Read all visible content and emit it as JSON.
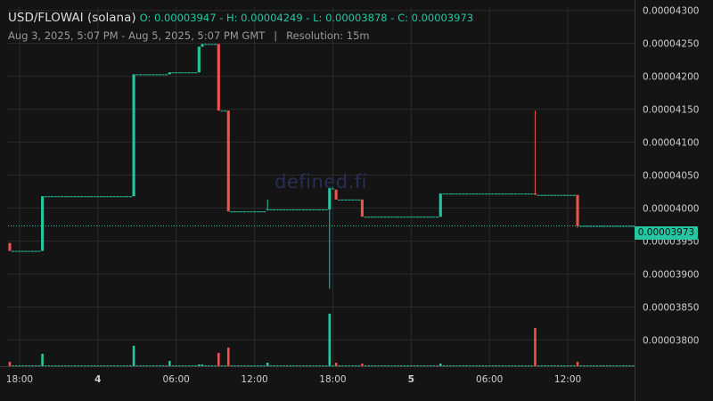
{
  "header": {
    "pair": "USD/FLOWAI (solana)",
    "open": "O: 0.00003947",
    "high": "H: 0.00004249",
    "low": "L: 0.00003878",
    "close": "C: 0.00003973",
    "separator": " - ",
    "range": "Aug 3, 2025, 5:07 PM - Aug 5, 2025, 5:07 PM GMT",
    "divider": "|",
    "resolution": "Resolution: 15m"
  },
  "watermark": "defined.fi",
  "last_price_label": "0.00003973",
  "colors": {
    "up": "#26c6a2",
    "down": "#ef5350",
    "background": "#141414",
    "grid": "#2a2a2a",
    "axis_text": "#cfcfcf",
    "watermark": "#2a2d55"
  },
  "chart_data": {
    "type": "candlestick",
    "resolution": "15m",
    "y_range": [
      3.76e-05,
      4.305e-05
    ],
    "y_ticks": [
      "0.00004300",
      "0.00004250",
      "0.00004200",
      "0.00004150",
      "0.00004100",
      "0.00004050",
      "0.00004000",
      "0.00003950",
      "0.00003900",
      "0.00003850",
      "0.00003800"
    ],
    "x_ticks": [
      {
        "label": "18:00",
        "t": "2025-08-03T18:00",
        "bold": false
      },
      {
        "label": "4",
        "t": "2025-08-04T00:00",
        "bold": true
      },
      {
        "label": "06:00",
        "t": "2025-08-04T06:00",
        "bold": false
      },
      {
        "label": "12:00",
        "t": "2025-08-04T12:00",
        "bold": false
      },
      {
        "label": "18:00",
        "t": "2025-08-04T18:00",
        "bold": false
      },
      {
        "label": "5",
        "t": "2025-08-05T00:00",
        "bold": true
      },
      {
        "label": "06:00",
        "t": "2025-08-05T06:00",
        "bold": false
      },
      {
        "label": "12:00",
        "t": "2025-08-05T12:00",
        "bold": false
      }
    ],
    "last_price": 3.973e-05,
    "grid": true,
    "candles": [
      {
        "t": "2025-08-03T17:15",
        "o": 3.947e-05,
        "h": 3.947e-05,
        "l": 3.935e-05,
        "c": 3.935e-05,
        "v": 0.5
      },
      {
        "t": "2025-08-03T19:45",
        "o": 3.935e-05,
        "h": 4.018e-05,
        "l": 3.935e-05,
        "c": 4.018e-05,
        "v": 1.4
      },
      {
        "t": "2025-08-04T02:45",
        "o": 4.018e-05,
        "h": 4.203e-05,
        "l": 4.018e-05,
        "c": 4.203e-05,
        "v": 2.3
      },
      {
        "t": "2025-08-04T05:30",
        "o": 4.203e-05,
        "h": 4.206e-05,
        "l": 4.203e-05,
        "c": 4.206e-05,
        "v": 0.6
      },
      {
        "t": "2025-08-04T07:45",
        "o": 4.206e-05,
        "h": 4.245e-05,
        "l": 4.206e-05,
        "c": 4.245e-05,
        "v": 0.2
      },
      {
        "t": "2025-08-04T08:00",
        "o": 4.245e-05,
        "h": 4.249e-05,
        "l": 4.245e-05,
        "c": 4.249e-05,
        "v": 0.2
      },
      {
        "t": "2025-08-04T09:15",
        "o": 4.249e-05,
        "h": 4.249e-05,
        "l": 4.148e-05,
        "c": 4.148e-05,
        "v": 1.5
      },
      {
        "t": "2025-08-04T10:00",
        "o": 4.148e-05,
        "h": 4.148e-05,
        "l": 3.995e-05,
        "c": 3.995e-05,
        "v": 2.1
      },
      {
        "t": "2025-08-04T13:00",
        "o": 3.997e-05,
        "h": 4.013e-05,
        "l": 3.997e-05,
        "c": 3.998e-05,
        "v": 0.4
      },
      {
        "t": "2025-08-04T17:45",
        "o": 3.998e-05,
        "h": 4.03e-05,
        "l": 3.878e-05,
        "c": 4.03e-05,
        "v": 5.9
      },
      {
        "t": "2025-08-04T18:15",
        "o": 4.028e-05,
        "h": 4.028e-05,
        "l": 4.013e-05,
        "c": 4.013e-05,
        "v": 0.4
      },
      {
        "t": "2025-08-04T20:15",
        "o": 4.013e-05,
        "h": 4.013e-05,
        "l": 3.987e-05,
        "c": 3.987e-05,
        "v": 0.3
      },
      {
        "t": "2025-08-05T02:15",
        "o": 3.987e-05,
        "h": 4.022e-05,
        "l": 3.987e-05,
        "c": 4.022e-05,
        "v": 0.3
      },
      {
        "t": "2025-08-05T09:30",
        "o": 4.022e-05,
        "h": 4.148e-05,
        "l": 4.02e-05,
        "c": 4.02e-05,
        "v": 4.3
      },
      {
        "t": "2025-08-05T12:45",
        "o": 4.02e-05,
        "h": 4.02e-05,
        "l": 3.97e-05,
        "c": 3.973e-05,
        "v": 0.5
      }
    ]
  }
}
